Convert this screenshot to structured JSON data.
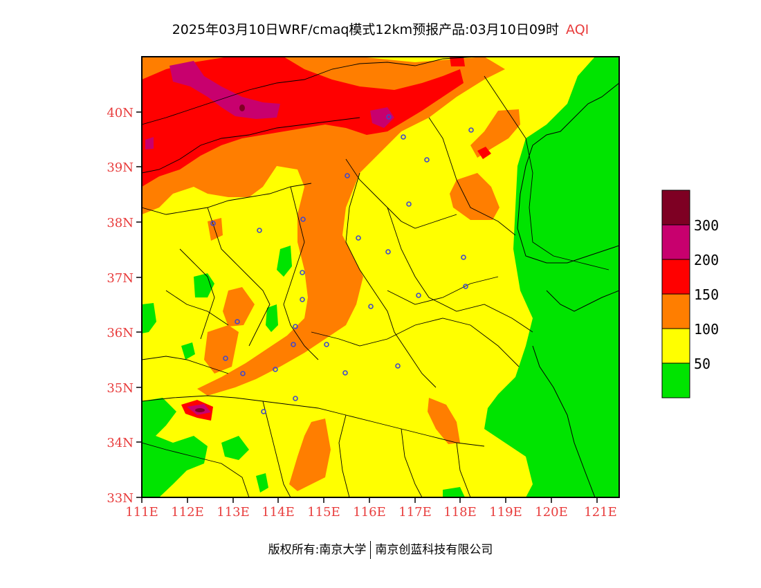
{
  "title": {
    "main": "2025年03月10日WRF/cmaq模式12km预报产品:03月10日09时",
    "variable": "AQI"
  },
  "map": {
    "lon_range": [
      111,
      121.5
    ],
    "lat_range": [
      33,
      41
    ],
    "lon_ticks": [
      "111E",
      "112E",
      "113E",
      "114E",
      "115E",
      "116E",
      "117E",
      "118E",
      "119E",
      "120E",
      "121E"
    ],
    "lat_ticks": [
      "33N",
      "34N",
      "35N",
      "36N",
      "37N",
      "38N",
      "39N",
      "40N"
    ],
    "colors": {
      "good": "#00e400",
      "moderate": "#ffff00",
      "usg": "#ff7e00",
      "unhealthy": "#ff0000",
      "very_unhealthy": "#c8006e",
      "hazardous": "#7e0023",
      "city_marker": "#3f48cc"
    },
    "city_marker_icon": "city-marker-icon"
  },
  "legend": {
    "labels": [
      "300",
      "200",
      "150",
      "100",
      "50"
    ],
    "colors": [
      "#7e0023",
      "#c8006e",
      "#ff0000",
      "#ff7e00",
      "#ffff00",
      "#00e400"
    ]
  },
  "footer": {
    "left": "版权所有:南京大学",
    "right": "南京创蓝科技有限公司"
  }
}
